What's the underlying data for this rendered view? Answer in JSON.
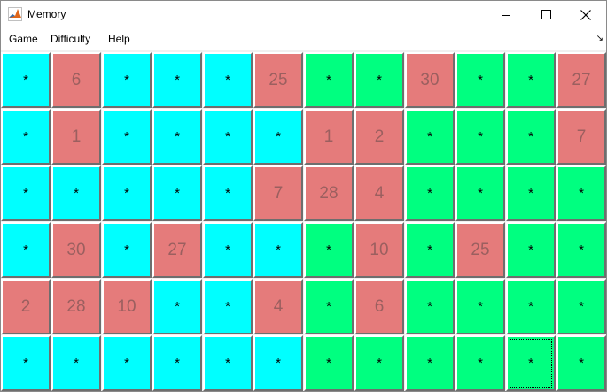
{
  "window": {
    "title": "Memory"
  },
  "menu": {
    "items": [
      "Game",
      "Difficulty",
      "Help"
    ]
  },
  "colors": {
    "p1_hidden": "#00ffff",
    "p2_hidden": "#00ff80",
    "revealed": "#e57b7b",
    "revealed_text": "#9b5f5f"
  },
  "board": {
    "rows": 6,
    "cols": 12,
    "tiles": [
      [
        "*",
        "6",
        "*",
        "*",
        "*",
        "25",
        "*",
        "*",
        "30",
        "*",
        "*",
        "27"
      ],
      [
        "*",
        "1",
        "*",
        "*",
        "*",
        "*",
        "1",
        "2",
        "*",
        "*",
        "*",
        "7"
      ],
      [
        "*",
        "*",
        "*",
        "*",
        "*",
        "7",
        "28",
        "4",
        "*",
        "*",
        "*",
        "*"
      ],
      [
        "*",
        "30",
        "*",
        "27",
        "*",
        "*",
        "*",
        "10",
        "*",
        "25",
        "*",
        "*"
      ],
      [
        "2",
        "28",
        "10",
        "*",
        "*",
        "4",
        "*",
        "6",
        "*",
        "*",
        "*",
        "*"
      ],
      [
        "*",
        "*",
        "*",
        "*",
        "*",
        "*",
        "*",
        "*",
        "*",
        "*",
        "*",
        "*"
      ]
    ],
    "hidden_color": [
      [
        "c",
        "c",
        "c",
        "c",
        "c",
        "c",
        "g",
        "g",
        "g",
        "g",
        "g",
        "g"
      ],
      [
        "c",
        "c",
        "c",
        "c",
        "c",
        "c",
        "g",
        "g",
        "g",
        "g",
        "g",
        "g"
      ],
      [
        "c",
        "c",
        "c",
        "c",
        "c",
        "c",
        "g",
        "g",
        "g",
        "g",
        "g",
        "g"
      ],
      [
        "c",
        "c",
        "c",
        "c",
        "c",
        "c",
        "g",
        "g",
        "g",
        "g",
        "g",
        "g"
      ],
      [
        "c",
        "c",
        "c",
        "c",
        "c",
        "c",
        "g",
        "g",
        "g",
        "g",
        "g",
        "g"
      ],
      [
        "c",
        "c",
        "c",
        "c",
        "c",
        "c",
        "g",
        "g",
        "g",
        "g",
        "g",
        "g"
      ]
    ],
    "focused_tile": [
      5,
      10
    ]
  }
}
